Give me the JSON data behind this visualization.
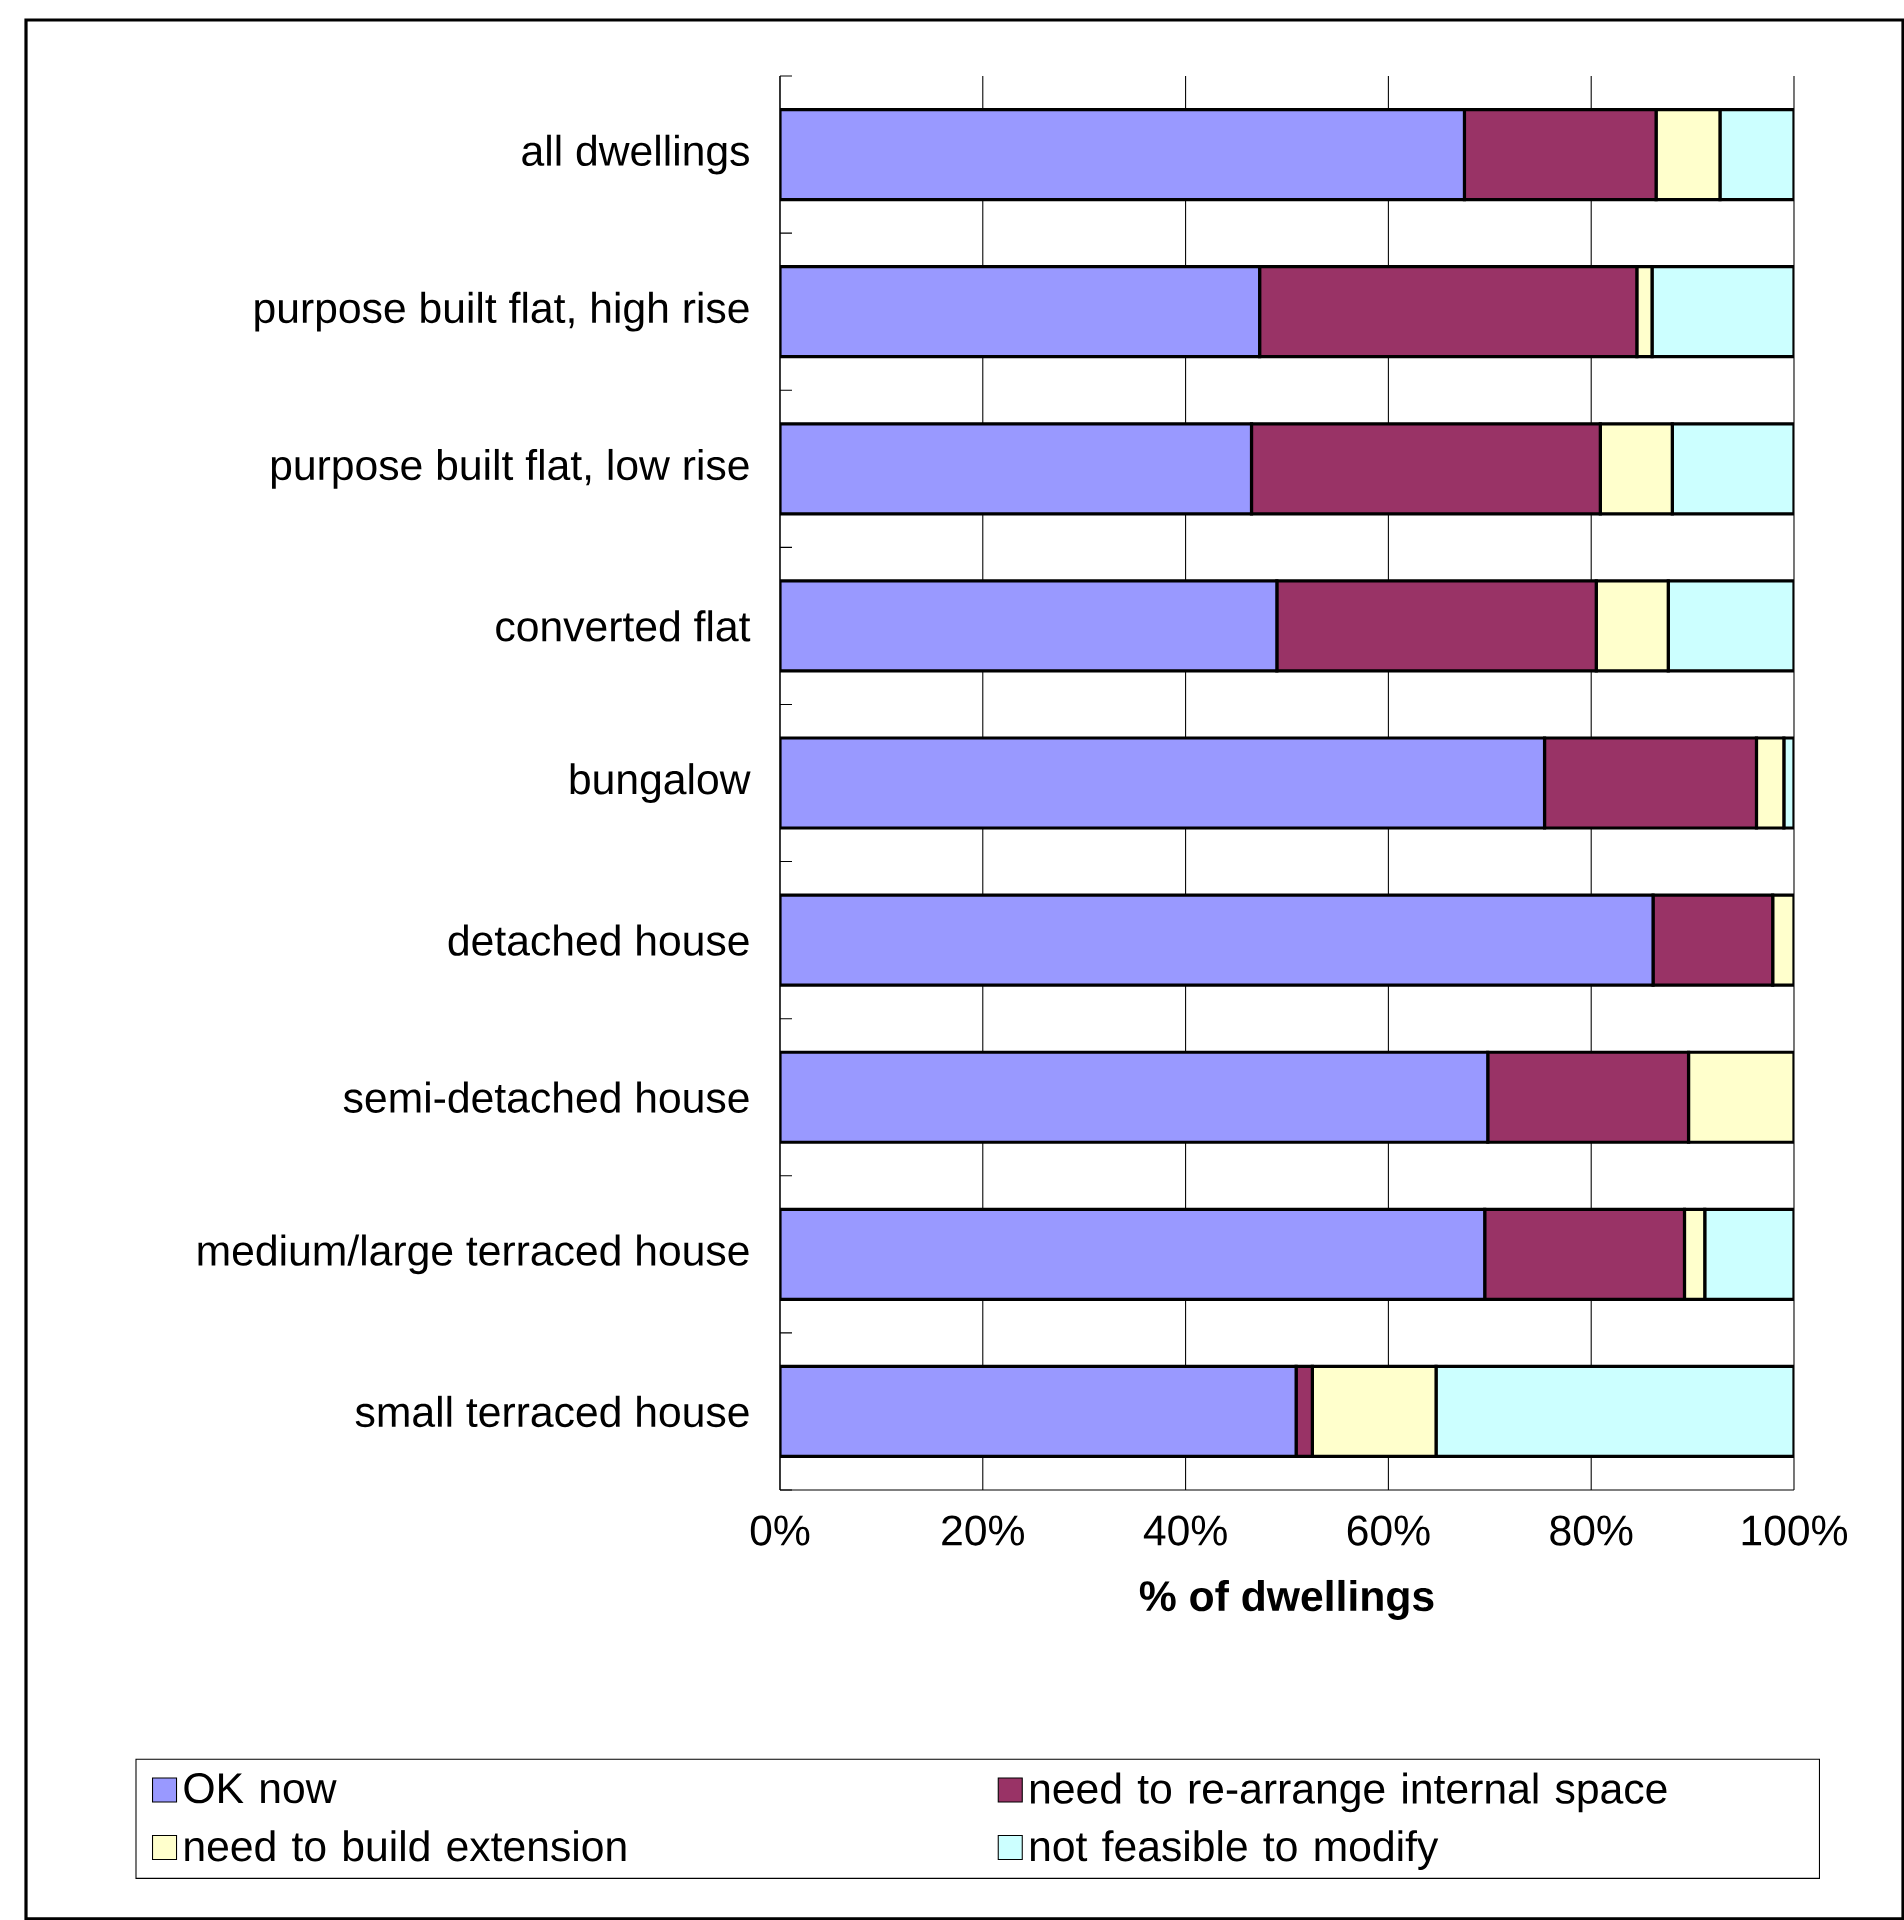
{
  "chart_data": {
    "type": "bar",
    "orientation": "horizontal",
    "stacked": true,
    "categories": [
      "all dwellings",
      "purpose built flat, high rise",
      "purpose built flat, low rise",
      "converted flat",
      "bungalow",
      "detached house",
      "semi-detached house",
      "medium/large terraced house",
      "small terraced house"
    ],
    "series": [
      {
        "name": "OK now",
        "color": "#9999ff",
        "values": [
          67.5,
          47.3,
          46.5,
          49.0,
          75.4,
          86.1,
          69.8,
          69.5,
          50.9
        ]
      },
      {
        "name": "need to re-arrange internal space",
        "color": "#993366",
        "values": [
          18.9,
          37.2,
          34.4,
          31.5,
          20.9,
          11.8,
          19.8,
          19.7,
          1.6
        ]
      },
      {
        "name": "need to build extension",
        "color": "#ffffcc",
        "values": [
          6.3,
          1.5,
          7.1,
          7.1,
          2.7,
          2.1,
          10.4,
          2.0,
          12.2
        ]
      },
      {
        "name": "not feasible to modify",
        "color": "#ccffff",
        "values": [
          7.3,
          14.0,
          12.0,
          12.4,
          1.0,
          0,
          0,
          8.8,
          35.3
        ]
      }
    ],
    "xlim": [
      0,
      100
    ],
    "xticks": [
      {
        "value": 0,
        "label": "0%"
      },
      {
        "value": 20,
        "label": "20%"
      },
      {
        "value": 40,
        "label": "40%"
      },
      {
        "value": 60,
        "label": "60%"
      },
      {
        "value": 80,
        "label": "80%"
      },
      {
        "value": 100,
        "label": "100%"
      }
    ],
    "xlabel": "% of dwellings",
    "grid": "x",
    "legend": "bottom"
  }
}
